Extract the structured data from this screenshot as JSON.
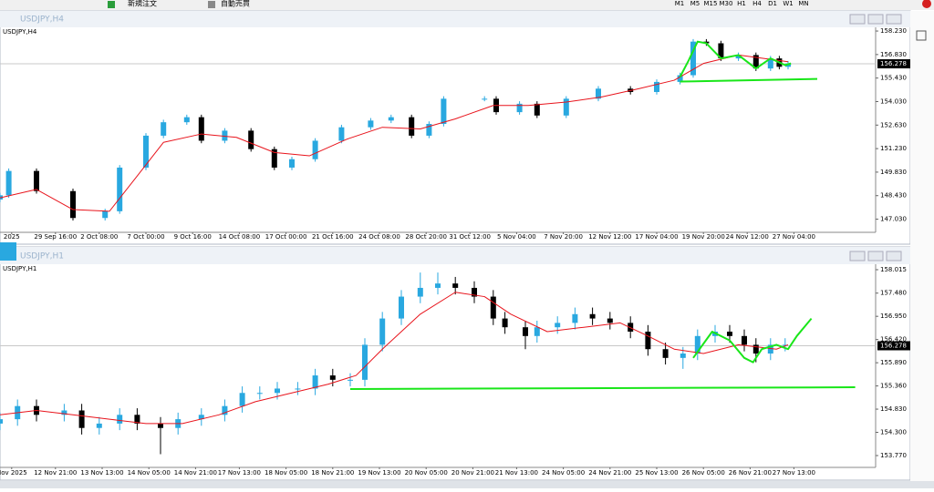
{
  "toolbar": {
    "labels": [
      "新規注文",
      "自動売買"
    ],
    "timeframes": [
      "M1",
      "M5",
      "M15",
      "M30",
      "H1",
      "H4",
      "D1",
      "W1",
      "MN"
    ]
  },
  "chart_data": [
    {
      "type": "candlestick",
      "window_title": "USDJPY,H4",
      "title": "USDJPY,H4",
      "up_color": "#29a8e0",
      "down_color": "#000000",
      "grid": false,
      "xlim": [
        0,
        300
      ],
      "ylim": [
        146.3,
        158.45
      ],
      "yticks": [
        {
          "value": 158.23,
          "label": "158.230"
        },
        {
          "value": 156.83,
          "label": "156.830"
        },
        {
          "value": 155.43,
          "label": "155.430"
        },
        {
          "value": 154.03,
          "label": "154.030"
        },
        {
          "value": 152.63,
          "label": "152.630"
        },
        {
          "value": 151.23,
          "label": "151.230"
        },
        {
          "value": 149.83,
          "label": "149.830"
        },
        {
          "value": 148.43,
          "label": "148.430"
        },
        {
          "value": 147.03,
          "label": "147.030"
        }
      ],
      "xticks": [
        {
          "value": 4,
          "label": "2025"
        },
        {
          "value": 19,
          "label": "29 Sep 16:00"
        },
        {
          "value": 34,
          "label": "2 Oct 08:00"
        },
        {
          "value": 50,
          "label": "7 Oct 00:00"
        },
        {
          "value": 66,
          "label": "9 Oct 16:00"
        },
        {
          "value": 82,
          "label": "14 Oct 08:00"
        },
        {
          "value": 98,
          "label": "17 Oct 00:00"
        },
        {
          "value": 114,
          "label": "21 Oct 16:00"
        },
        {
          "value": 130,
          "label": "24 Oct 08:00"
        },
        {
          "value": 146,
          "label": "28 Oct 20:00"
        },
        {
          "value": 161,
          "label": "31 Oct 12:00"
        },
        {
          "value": 177,
          "label": "5 Nov 04:00"
        },
        {
          "value": 193,
          "label": "7 Nov 20:00"
        },
        {
          "value": 209,
          "label": "12 Nov 12:00"
        },
        {
          "value": 225,
          "label": "17 Nov 04:00"
        },
        {
          "value": 241,
          "label": "19 Nov 20:00"
        },
        {
          "value": 256,
          "label": "24 Nov 12:00"
        },
        {
          "value": 272,
          "label": "27 Nov 04:00"
        }
      ],
      "x": [
        0,
        3,
        12.5,
        25,
        36,
        41,
        50,
        56,
        64,
        69,
        77,
        86,
        94,
        100,
        108,
        117,
        127,
        134,
        141,
        147,
        152,
        166,
        170,
        178,
        184,
        194,
        205,
        216,
        225,
        233,
        237.5,
        242,
        247,
        253,
        259,
        264,
        267,
        270
      ],
      "candles": [
        [
          148.2,
          148.6,
          148.05,
          148.45
        ],
        [
          148.45,
          150.05,
          148.3,
          149.9
        ],
        [
          149.9,
          150.05,
          148.55,
          148.7
        ],
        [
          148.7,
          148.85,
          146.95,
          147.1
        ],
        [
          147.1,
          147.65,
          146.95,
          147.5
        ],
        [
          147.5,
          150.25,
          147.35,
          150.1
        ],
        [
          150.1,
          152.15,
          149.95,
          152.0
        ],
        [
          152.0,
          152.95,
          151.85,
          152.8
        ],
        [
          152.8,
          153.25,
          152.65,
          153.1
        ],
        [
          153.1,
          153.25,
          151.55,
          151.7
        ],
        [
          151.7,
          152.45,
          151.55,
          152.3
        ],
        [
          152.3,
          152.45,
          151.05,
          151.2
        ],
        [
          151.2,
          151.35,
          149.95,
          150.1
        ],
        [
          150.1,
          150.75,
          149.95,
          150.6
        ],
        [
          150.6,
          151.85,
          150.45,
          151.7
        ],
        [
          151.7,
          152.65,
          151.55,
          152.5
        ],
        [
          152.5,
          153.05,
          152.35,
          152.9
        ],
        [
          152.9,
          153.25,
          152.75,
          153.1
        ],
        [
          153.1,
          153.25,
          151.85,
          152.0
        ],
        [
          152.0,
          152.85,
          151.85,
          152.7
        ],
        [
          152.7,
          154.35,
          152.55,
          154.2
        ],
        [
          154.2,
          154.35,
          154.05,
          154.2
        ],
        [
          154.2,
          154.35,
          153.25,
          153.4
        ],
        [
          153.4,
          154.05,
          153.25,
          153.9
        ],
        [
          153.9,
          154.05,
          153.05,
          153.2
        ],
        [
          153.2,
          154.35,
          153.05,
          154.2
        ],
        [
          154.2,
          154.95,
          154.05,
          154.8
        ],
        [
          154.8,
          154.95,
          154.45,
          154.6
        ],
        [
          154.6,
          155.35,
          154.45,
          155.2
        ],
        [
          155.2,
          155.75,
          155.05,
          155.6
        ],
        [
          155.6,
          157.75,
          155.45,
          157.6
        ],
        [
          157.6,
          157.75,
          157.35,
          157.5
        ],
        [
          157.5,
          157.65,
          156.45,
          156.6
        ],
        [
          156.6,
          156.95,
          156.45,
          156.8
        ],
        [
          156.8,
          156.95,
          155.85,
          156.0
        ],
        [
          156.0,
          156.75,
          155.85,
          156.6
        ],
        [
          156.6,
          156.75,
          155.95,
          156.1
        ],
        [
          156.1,
          156.45,
          155.95,
          156.3
        ]
      ],
      "series": [
        {
          "color": "#e8141c",
          "x": [
            0,
            12.5,
            25,
            37.5,
            47,
            56,
            69,
            81,
            94,
            106,
            119,
            131,
            144,
            156,
            169,
            181,
            194,
            206,
            219,
            231,
            241,
            253,
            266,
            270
          ],
          "values": [
            148.3,
            148.8,
            147.6,
            147.5,
            149.6,
            151.6,
            152.1,
            151.9,
            151.0,
            150.8,
            151.8,
            152.5,
            152.4,
            153.0,
            153.8,
            153.8,
            154.0,
            154.3,
            154.8,
            155.3,
            156.3,
            156.8,
            156.5,
            156.4
          ]
        }
      ],
      "drawings": [
        {
          "color": "#19e619",
          "x": [
            233,
            280
          ],
          "values": [
            155.22,
            155.38
          ]
        },
        {
          "color": "#19e619",
          "x": [
            233,
            236,
            239,
            242,
            247,
            253,
            259,
            264,
            269,
            271
          ],
          "values": [
            155.5,
            156.5,
            157.6,
            157.5,
            156.6,
            156.8,
            156.0,
            156.6,
            156.2,
            156.3
          ]
        }
      ],
      "current_price": 156.278
    },
    {
      "type": "candlestick",
      "window_title": "USDJPY,H1",
      "title": "USDJPY,H1",
      "up_color": "#29a8e0",
      "down_color": "#000000",
      "grid": false,
      "xlim": [
        0,
        300
      ],
      "ylim": [
        153.52,
        158.14
      ],
      "yticks": [
        158.015,
        {
          "value": 157.48,
          "label": "157.480"
        },
        {
          "value": 156.95,
          "label": "156.950"
        },
        {
          "value": 156.42,
          "label": "156.420"
        },
        {
          "value": 155.89,
          "label": "155.890"
        },
        {
          "value": 155.36,
          "label": "155.360"
        },
        {
          "value": 154.83,
          "label": "154.830"
        },
        {
          "value": 154.3,
          "label": "154.300"
        },
        {
          "value": 153.77,
          "label": "153.770"
        }
      ],
      "xticks": [
        {
          "value": 4,
          "label": "Nov 2025"
        },
        {
          "value": 19,
          "label": "12 Nov 21:00"
        },
        {
          "value": 35,
          "label": "13 Nov 13:00"
        },
        {
          "value": 51,
          "label": "14 Nov 05:00"
        },
        {
          "value": 67,
          "label": "14 Nov 21:00"
        },
        {
          "value": 82,
          "label": "17 Nov 13:00"
        },
        {
          "value": 98,
          "label": "18 Nov 05:00"
        },
        {
          "value": 114,
          "label": "18 Nov 21:00"
        },
        {
          "value": 130,
          "label": "19 Nov 13:00"
        },
        {
          "value": 146,
          "label": "20 Nov 05:00"
        },
        {
          "value": 162,
          "label": "20 Nov 21:00"
        },
        {
          "value": 177,
          "label": "21 Nov 13:00"
        },
        {
          "value": 193,
          "label": "24 Nov 05:00"
        },
        {
          "value": 209,
          "label": "24 Nov 21:00"
        },
        {
          "value": 225,
          "label": "25 Nov 13:00"
        },
        {
          "value": 241,
          "label": "26 Nov 05:00"
        },
        {
          "value": 257,
          "label": "26 Nov 21:00"
        },
        {
          "value": 272,
          "label": "27 Nov 13:00"
        }
      ],
      "x": [
        0,
        6,
        12.5,
        22,
        28,
        34,
        41,
        47,
        55,
        61,
        69,
        77,
        83,
        89,
        95,
        102,
        108,
        114,
        120,
        125,
        131,
        137.5,
        144,
        150,
        156,
        162.5,
        169,
        173,
        180,
        184,
        191,
        197,
        203,
        209,
        216,
        222,
        228,
        234,
        239,
        245,
        250,
        255,
        259,
        264,
        269
      ],
      "candles": [
        [
          154.5,
          154.75,
          154.35,
          154.6
        ],
        [
          154.6,
          155.05,
          154.45,
          154.9
        ],
        [
          154.9,
          155.05,
          154.55,
          154.7
        ],
        [
          154.7,
          154.95,
          154.55,
          154.8
        ],
        [
          154.8,
          154.95,
          154.25,
          154.4
        ],
        [
          154.4,
          154.65,
          154.25,
          154.5
        ],
        [
          154.5,
          154.85,
          154.35,
          154.7
        ],
        [
          154.7,
          154.85,
          154.35,
          154.5
        ],
        [
          154.5,
          154.65,
          153.8,
          154.4
        ],
        [
          154.4,
          154.75,
          154.25,
          154.6
        ],
        [
          154.6,
          154.85,
          154.45,
          154.7
        ],
        [
          154.7,
          155.05,
          154.55,
          154.9
        ],
        [
          154.9,
          155.35,
          154.75,
          155.2
        ],
        [
          155.2,
          155.35,
          155.05,
          155.2
        ],
        [
          155.2,
          155.45,
          155.05,
          155.3
        ],
        [
          155.3,
          155.45,
          155.15,
          155.3
        ],
        [
          155.3,
          155.75,
          155.15,
          155.6
        ],
        [
          155.6,
          155.75,
          155.35,
          155.5
        ],
        [
          155.5,
          155.65,
          155.35,
          155.5
        ],
        [
          155.5,
          156.45,
          155.35,
          156.3
        ],
        [
          156.3,
          157.05,
          156.15,
          156.9
        ],
        [
          156.9,
          157.55,
          156.75,
          157.4
        ],
        [
          157.4,
          157.95,
          157.25,
          157.6
        ],
        [
          157.6,
          157.95,
          157.45,
          157.7
        ],
        [
          157.7,
          157.85,
          157.45,
          157.6
        ],
        [
          157.6,
          157.75,
          157.25,
          157.4
        ],
        [
          157.4,
          157.55,
          156.75,
          156.9
        ],
        [
          156.9,
          157.05,
          156.55,
          156.7
        ],
        [
          156.7,
          156.85,
          156.2,
          156.5
        ],
        [
          156.5,
          156.85,
          156.35,
          156.7
        ],
        [
          156.7,
          156.95,
          156.55,
          156.8
        ],
        [
          156.8,
          157.15,
          156.65,
          157.0
        ],
        [
          157.0,
          157.15,
          156.75,
          156.9
        ],
        [
          156.9,
          157.05,
          156.65,
          156.8
        ],
        [
          156.8,
          156.95,
          156.45,
          156.6
        ],
        [
          156.6,
          156.75,
          156.05,
          156.2
        ],
        [
          156.2,
          156.35,
          155.85,
          156.0
        ],
        [
          156.0,
          156.25,
          155.75,
          156.1
        ],
        [
          156.1,
          156.65,
          155.95,
          156.5
        ],
        [
          156.5,
          156.75,
          156.35,
          156.6
        ],
        [
          156.6,
          156.75,
          156.35,
          156.5
        ],
        [
          156.5,
          156.65,
          156.15,
          156.3
        ],
        [
          156.3,
          156.45,
          155.9,
          156.1
        ],
        [
          156.1,
          156.45,
          155.95,
          156.3
        ],
        [
          156.3,
          156.45,
          156.15,
          156.3
        ]
      ],
      "series": [
        {
          "color": "#e8141c",
          "x": [
            0,
            12.5,
            25,
            37.5,
            50,
            62.5,
            75,
            87.5,
            100,
            112.5,
            122,
            131,
            144,
            156,
            166,
            175,
            187.5,
            200,
            212.5,
            222,
            231,
            241,
            253,
            266,
            270
          ],
          "values": [
            154.7,
            154.8,
            154.7,
            154.6,
            154.5,
            154.5,
            154.7,
            155.0,
            155.2,
            155.4,
            155.6,
            156.2,
            157.0,
            157.5,
            157.4,
            157.0,
            156.6,
            156.7,
            156.8,
            156.5,
            156.2,
            156.1,
            156.3,
            156.2,
            156.3
          ]
        }
      ],
      "drawings": [
        {
          "color": "#19e619",
          "x": [
            120,
            293
          ],
          "values": [
            155.29,
            155.33
          ]
        },
        {
          "color": "#19e619",
          "x": [
            237.5,
            244,
            250,
            255,
            258,
            261,
            266,
            270,
            273,
            278
          ],
          "values": [
            156.0,
            156.6,
            156.4,
            156.0,
            155.9,
            156.2,
            156.3,
            156.2,
            156.5,
            156.9
          ]
        }
      ],
      "current_price": 156.278
    }
  ]
}
